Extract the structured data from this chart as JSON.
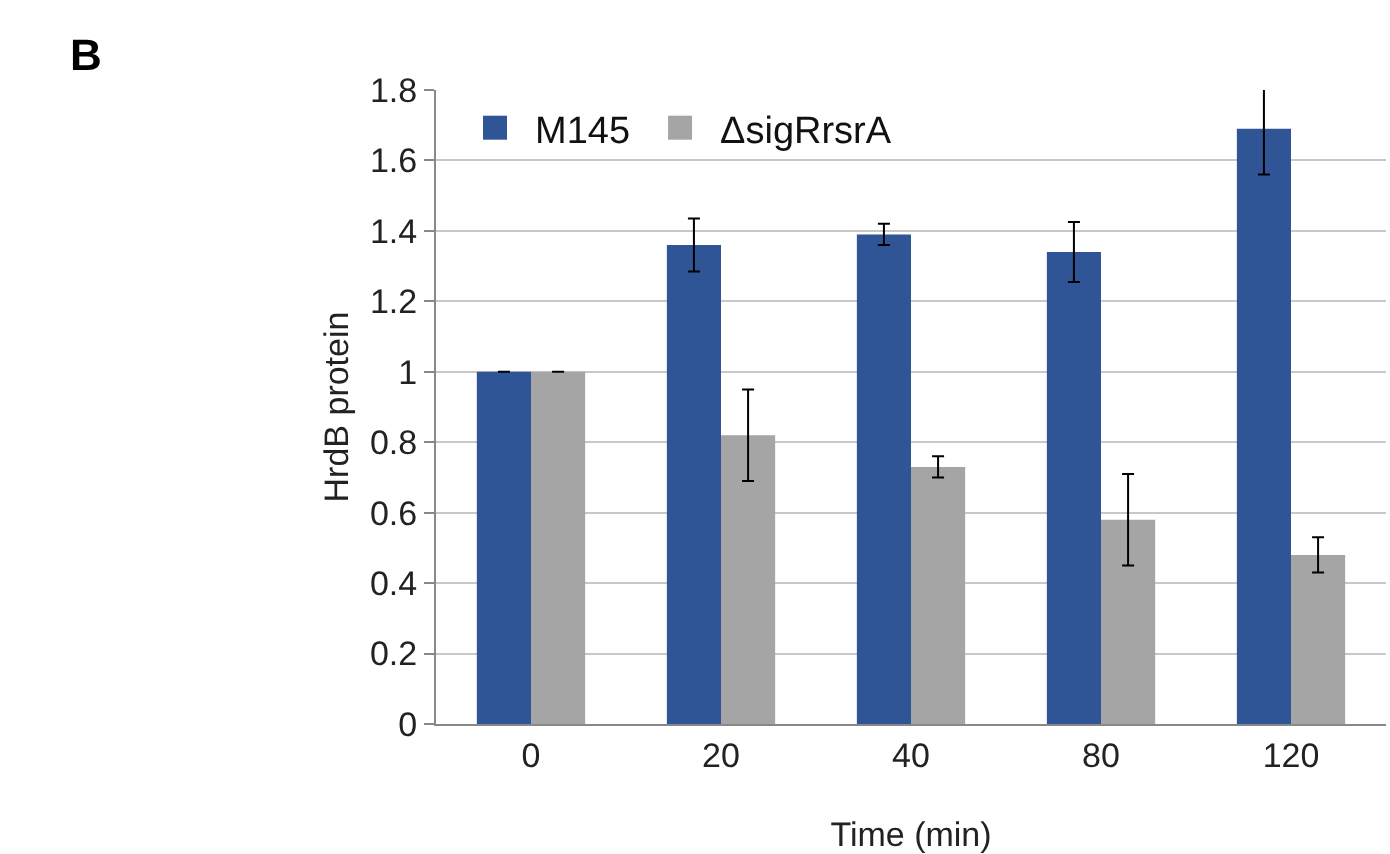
{
  "chart_data": {
    "type": "bar",
    "xlabel": "Time (min)",
    "ylabel": "HrdB protein",
    "annotations": [
      "B"
    ],
    "categories": [
      "0",
      "20",
      "40",
      "80",
      "120"
    ],
    "series": [
      {
        "name": "M145",
        "color": "#2f5597",
        "values": [
          1,
          1.36,
          1.39,
          1.34,
          1.69
        ],
        "errors": [
          0,
          0.075,
          0.03,
          0.085,
          0.13
        ]
      },
      {
        "name": "ΔsigRrsrA",
        "color": "#a5a5a5",
        "values": [
          1,
          0.82,
          0.73,
          0.58,
          0.48
        ],
        "errors": [
          0,
          0.13,
          0.03,
          0.13,
          0.05
        ]
      }
    ],
    "ylim": [
      0,
      1.8
    ],
    "yticks": [
      0,
      0.2,
      0.4,
      0.6,
      0.8,
      1,
      1.2,
      1.4,
      1.6,
      1.8
    ],
    "grid": "y",
    "legend": "top left"
  }
}
